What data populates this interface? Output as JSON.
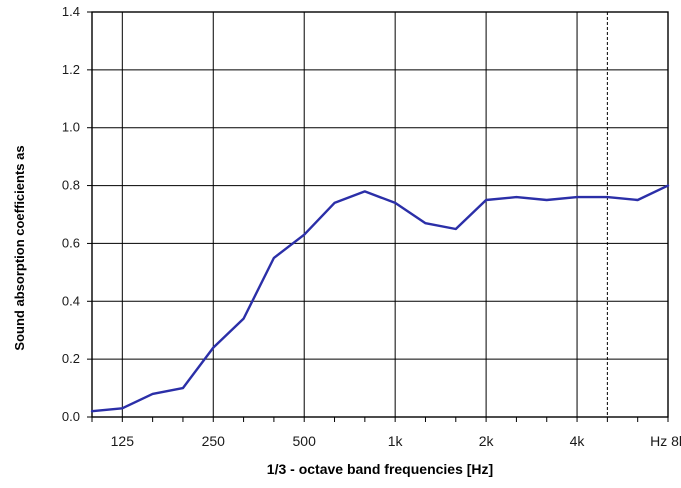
{
  "chart_data": {
    "type": "line",
    "title": "",
    "xlabel": "1/3 - octave band frequencies [Hz]",
    "ylabel": "Sound absorption coefficients as",
    "ylim": [
      0.0,
      1.4
    ],
    "y_ticks": [
      "0.0",
      "0.2",
      "0.4",
      "0.6",
      "0.8",
      "1.0",
      "1.2",
      "1.4"
    ],
    "x_ticks": [
      "125",
      "250",
      "500",
      "1k",
      "2k",
      "4k",
      "Hz 8k"
    ],
    "x_tick_band_index": [
      1,
      4,
      7,
      10,
      13,
      16,
      19
    ],
    "x": [
      "100",
      "125",
      "160",
      "200",
      "250",
      "315",
      "400",
      "500",
      "630",
      "800",
      "1000",
      "1250",
      "1600",
      "2000",
      "2500",
      "3150",
      "4000",
      "5000",
      "6300",
      "8000"
    ],
    "series": [
      {
        "name": "",
        "color": "#2b2fa8",
        "values": [
          0.02,
          0.03,
          0.08,
          0.1,
          0.24,
          0.34,
          0.55,
          0.63,
          0.74,
          0.78,
          0.74,
          0.67,
          0.65,
          0.75,
          0.76,
          0.75,
          0.76,
          0.76,
          0.75,
          0.8
        ]
      }
    ],
    "grid": true,
    "dashed_gridline_band_index": 17,
    "legend": "none"
  }
}
